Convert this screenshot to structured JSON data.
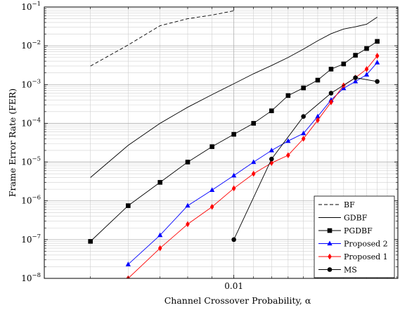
{
  "chart_data": {
    "type": "line",
    "title": "",
    "xlabel": "Channel Crossover Probability, α",
    "ylabel": "Frame Error Rate (FER)",
    "x_scale": "log",
    "y_scale": "log",
    "xlim": [
      0.004,
      0.0221
    ],
    "ylim": [
      1e-08,
      0.1
    ],
    "x_tick_labels": [
      {
        "value": 0.01,
        "label": "0.01"
      }
    ],
    "y_ticks": [
      1e-08,
      1e-07,
      1e-06,
      1e-05,
      0.0001,
      0.001,
      0.01,
      0.1
    ],
    "y_tick_labels": [
      {
        "mantissa": "10",
        "exponent": "−8"
      },
      {
        "mantissa": "10",
        "exponent": "−7"
      },
      {
        "mantissa": "10",
        "exponent": "−6"
      },
      {
        "mantissa": "10",
        "exponent": "−5"
      },
      {
        "mantissa": "10",
        "exponent": "−4"
      },
      {
        "mantissa": "10",
        "exponent": "−3"
      },
      {
        "mantissa": "10",
        "exponent": "−2"
      },
      {
        "mantissa": "10",
        "exponent": "−1"
      }
    ],
    "grid": true,
    "legend_position": "bottom-right",
    "series": [
      {
        "name": "BF",
        "color": "#000000",
        "dash": "dashed",
        "marker": "none",
        "x": [
          0.005,
          0.006,
          0.007,
          0.008,
          0.009,
          0.01
        ],
        "y": [
          0.003,
          0.0105,
          0.033,
          0.05,
          0.062,
          0.08
        ]
      },
      {
        "name": "GDBF",
        "color": "#000000",
        "dash": "solid",
        "marker": "none",
        "x": [
          0.005,
          0.006,
          0.007,
          0.008,
          0.009,
          0.01,
          0.011,
          0.012,
          0.013,
          0.014,
          0.015,
          0.016,
          0.017,
          0.018,
          0.019,
          0.02
        ],
        "y": [
          4e-06,
          2.7e-05,
          0.0001,
          0.00026,
          0.00055,
          0.00105,
          0.0019,
          0.0031,
          0.005,
          0.0082,
          0.0135,
          0.0205,
          0.027,
          0.031,
          0.036,
          0.055
        ]
      },
      {
        "name": "PGDBF",
        "color": "#000000",
        "dash": "solid",
        "marker": "square",
        "x": [
          0.005,
          0.006,
          0.007,
          0.008,
          0.009,
          0.01,
          0.011,
          0.012,
          0.013,
          0.014,
          0.015,
          0.016,
          0.017,
          0.018,
          0.019,
          0.02
        ],
        "y": [
          9e-08,
          7.5e-07,
          3e-06,
          1e-05,
          2.5e-05,
          5.2e-05,
          0.0001,
          0.00021,
          0.00052,
          0.00082,
          0.0013,
          0.0025,
          0.0034,
          0.0057,
          0.0085,
          0.013
        ]
      },
      {
        "name": "Proposed 2",
        "color": "#0000ff",
        "dash": "solid",
        "marker": "triangle",
        "x": [
          0.006,
          0.007,
          0.008,
          0.009,
          0.01,
          0.011,
          0.012,
          0.013,
          0.014,
          0.015,
          0.016,
          0.017,
          0.018,
          0.019,
          0.02
        ],
        "y": [
          2.3e-08,
          1.3e-07,
          7.5e-07,
          1.9e-06,
          4.5e-06,
          1e-05,
          2e-05,
          3.5e-05,
          5.5e-05,
          0.00015,
          0.0004,
          0.0008,
          0.0012,
          0.0018,
          0.0037
        ]
      },
      {
        "name": "Proposed 1",
        "color": "#ff0000",
        "dash": "solid",
        "marker": "diamond",
        "x": [
          0.006,
          0.007,
          0.008,
          0.009,
          0.01,
          0.011,
          0.012,
          0.013,
          0.014,
          0.015,
          0.016,
          0.017,
          0.018,
          0.019,
          0.02
        ],
        "y": [
          1e-08,
          6e-08,
          2.5e-07,
          7e-07,
          2.1e-06,
          5e-06,
          9.5e-06,
          1.5e-05,
          4e-05,
          0.00012,
          0.00035,
          0.00095,
          0.0015,
          0.0025,
          0.0055
        ]
      },
      {
        "name": "MS",
        "color": "#000000",
        "dash": "solid",
        "marker": "circle",
        "x": [
          0.01,
          0.012,
          0.014,
          0.016,
          0.018,
          0.02
        ],
        "y": [
          1e-07,
          1.2e-05,
          0.00015,
          0.0006,
          0.0015,
          0.0012
        ]
      }
    ]
  }
}
